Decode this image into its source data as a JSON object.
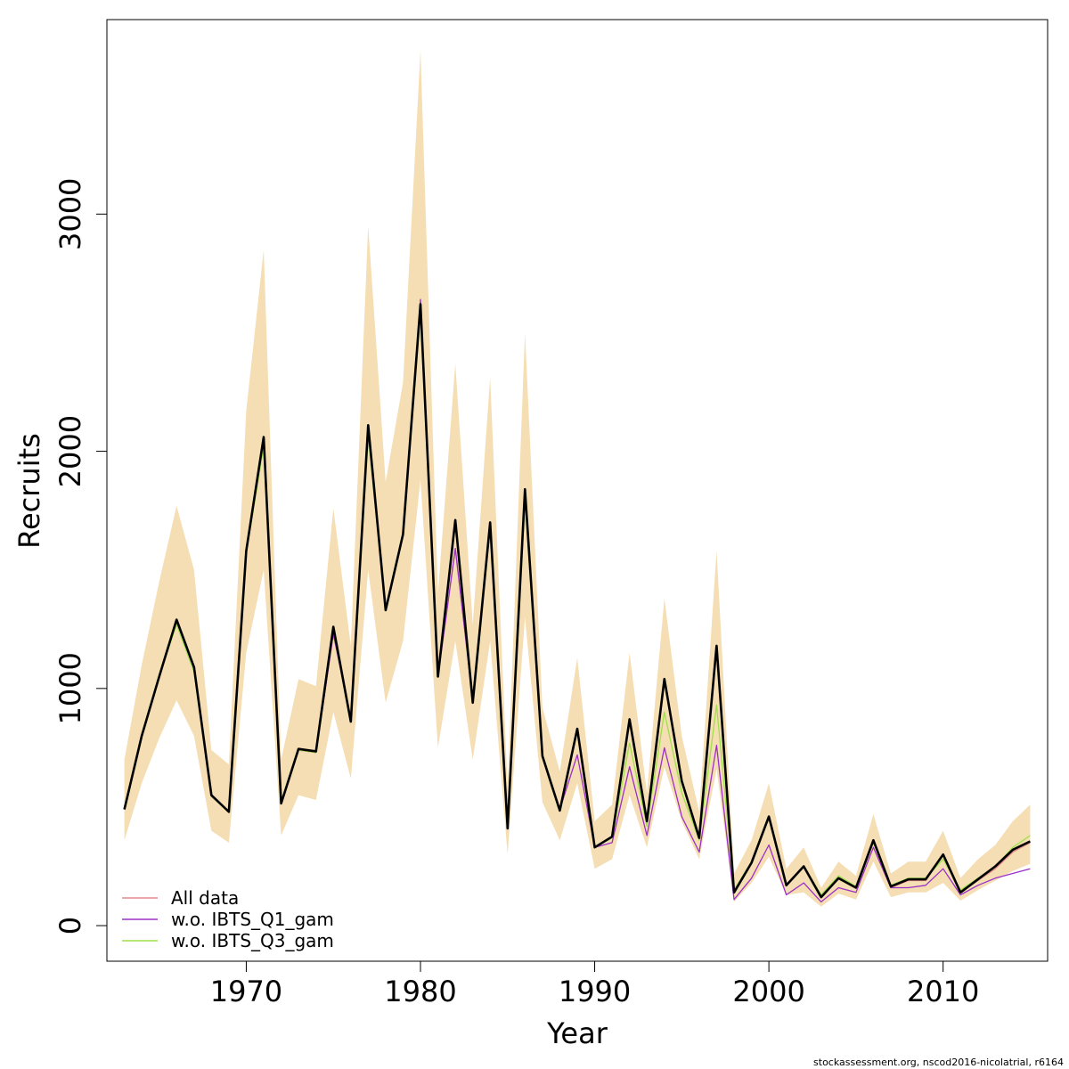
{
  "chart_data": {
    "type": "line",
    "xlabel": "Year",
    "ylabel": "Recruits",
    "xlim": [
      1962,
      2016
    ],
    "ylim": [
      -150,
      3820
    ],
    "x_ticks": [
      1970,
      1980,
      1990,
      2000,
      2010
    ],
    "y_ticks": [
      0,
      1000,
      2000,
      3000
    ],
    "grid": false,
    "legend_position": "bottom-left",
    "colors": {
      "band": "#f5deb3",
      "estimate": "#000000",
      "all_data": "#e58a8a",
      "wo_q1": "#9b30c8",
      "wo_q3": "#9fe04a"
    },
    "x": [
      1963,
      1964,
      1965,
      1966,
      1967,
      1968,
      1969,
      1970,
      1971,
      1972,
      1973,
      1974,
      1975,
      1976,
      1977,
      1978,
      1979,
      1980,
      1981,
      1982,
      1983,
      1984,
      1985,
      1986,
      1987,
      1988,
      1989,
      1990,
      1991,
      1992,
      1993,
      1994,
      1995,
      1996,
      1997,
      1998,
      1999,
      2000,
      2001,
      2002,
      2003,
      2004,
      2005,
      2006,
      2007,
      2008,
      2009,
      2010,
      2011,
      2012,
      2013,
      2014,
      2015
    ],
    "confidence_band": {
      "lower": [
        360,
        600,
        790,
        950,
        800,
        400,
        350,
        1150,
        1500,
        380,
        550,
        530,
        900,
        620,
        1500,
        940,
        1200,
        1880,
        750,
        1200,
        700,
        1200,
        300,
        1300,
        520,
        360,
        600,
        240,
        280,
        550,
        330,
        670,
        440,
        280,
        660,
        100,
        180,
        290,
        130,
        140,
        80,
        135,
        110,
        270,
        120,
        140,
        140,
        180,
        105,
        150,
        190,
        230,
        260
      ],
      "upper": [
        700,
        1100,
        1450,
        1770,
        1500,
        740,
        680,
        2170,
        2850,
        700,
        1040,
        1010,
        1760,
        1180,
        2950,
        1870,
        2290,
        3690,
        1400,
        2370,
        1270,
        2310,
        580,
        2500,
        920,
        650,
        1130,
        440,
        510,
        1150,
        560,
        1380,
        800,
        480,
        1580,
        220,
        360,
        600,
        240,
        330,
        160,
        270,
        210,
        470,
        220,
        270,
        270,
        400,
        200,
        280,
        340,
        440,
        510
      ]
    },
    "series": [
      {
        "name": "All data",
        "values": [
          490,
          800,
          1050,
          1280,
          1080,
          545,
          480,
          1570,
          2040,
          515,
          740,
          730,
          1230,
          870,
          2100,
          1340,
          1650,
          2610,
          1050,
          1590,
          950,
          1680,
          420,
          1810,
          715,
          490,
          830,
          330,
          370,
          860,
          420,
          1040,
          610,
          380,
          1180,
          140,
          260,
          460,
          170,
          250,
          120,
          200,
          160,
          360,
          160,
          190,
          190,
          300,
          140,
          190,
          240,
          310,
          350
        ]
      },
      {
        "name": "w.o. IBTS_Q1_gam",
        "values": [
          490,
          800,
          1050,
          1280,
          1080,
          545,
          480,
          1570,
          2040,
          515,
          740,
          730,
          1230,
          870,
          2100,
          1340,
          1650,
          2640,
          1050,
          1590,
          950,
          1680,
          420,
          1810,
          715,
          490,
          720,
          330,
          350,
          670,
          380,
          750,
          460,
          310,
          760,
          110,
          200,
          340,
          130,
          180,
          100,
          160,
          140,
          330,
          160,
          160,
          170,
          240,
          130,
          170,
          200,
          220,
          240
        ]
      },
      {
        "name": "w.o. IBTS_Q3_gam",
        "values": [
          490,
          800,
          1050,
          1270,
          1070,
          545,
          480,
          1570,
          2020,
          515,
          740,
          730,
          1250,
          870,
          2060,
          1340,
          1650,
          2580,
          1050,
          1700,
          950,
          1680,
          420,
          1790,
          715,
          490,
          830,
          330,
          370,
          770,
          420,
          900,
          560,
          360,
          930,
          150,
          270,
          460,
          170,
          250,
          130,
          210,
          165,
          350,
          170,
          200,
          200,
          280,
          150,
          200,
          250,
          330,
          380
        ]
      }
    ],
    "estimate": [
      490,
      800,
      1050,
      1290,
      1090,
      550,
      480,
      1580,
      2060,
      515,
      745,
      735,
      1260,
      860,
      2110,
      1330,
      1650,
      2620,
      1050,
      1710,
      940,
      1700,
      410,
      1840,
      715,
      485,
      830,
      330,
      375,
      870,
      440,
      1040,
      610,
      370,
      1180,
      140,
      265,
      460,
      170,
      250,
      120,
      200,
      160,
      360,
      165,
      195,
      195,
      300,
      140,
      195,
      250,
      320,
      355
    ],
    "legend": [
      "All data",
      "w.o. IBTS_Q1_gam",
      "w.o. IBTS_Q3_gam"
    ],
    "footer": "stockassessment.org, nscod2016-nicolatrial, r6164"
  }
}
